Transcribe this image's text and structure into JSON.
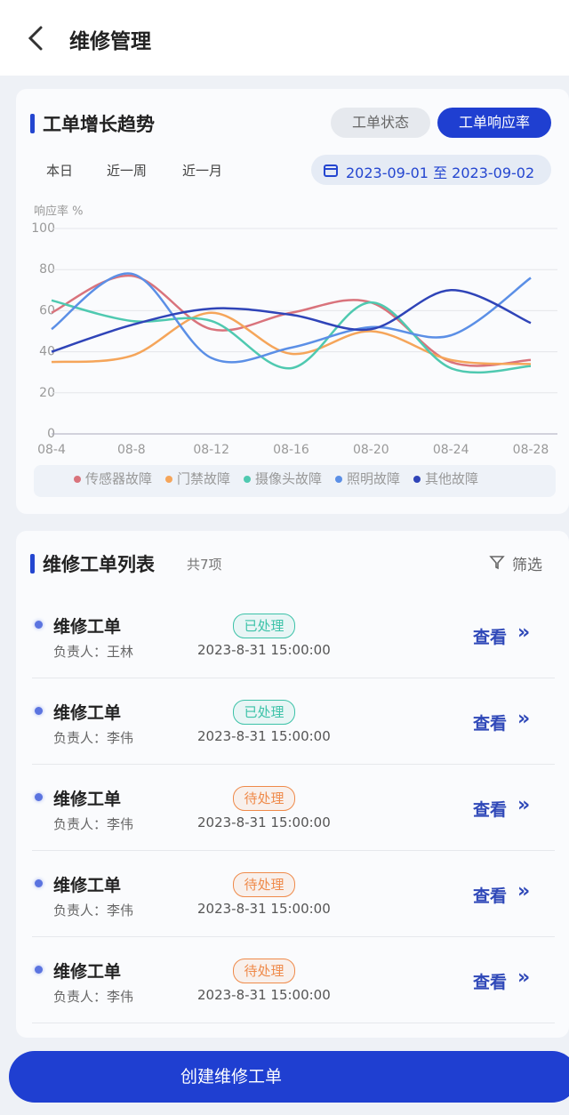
{
  "header": {
    "title": "维修管理"
  },
  "trend": {
    "title": "工单增长趋势",
    "tabs": [
      {
        "label": "工单状态",
        "active": false
      },
      {
        "label": "工单响应率",
        "active": true
      }
    ],
    "ranges": [
      "本日",
      "近一周",
      "近一月"
    ],
    "date_range": "2023-09-01 至 2023-09-02",
    "chart": {
      "type": "line",
      "y_label": "响应率 %",
      "categories": [
        "08-4",
        "08-8",
        "08-12",
        "08-16",
        "08-20",
        "08-24",
        "08-28"
      ],
      "ylim": [
        0,
        100
      ],
      "yticks": [
        0,
        20,
        40,
        60,
        80,
        100
      ],
      "grid": true,
      "series": [
        {
          "name": "传感器故障",
          "color": "#d9737c",
          "values": [
            59,
            77,
            51,
            59,
            64,
            35,
            36
          ]
        },
        {
          "name": "门禁故障",
          "color": "#f5a55a",
          "values": [
            35,
            38,
            59,
            39,
            50,
            36,
            34
          ]
        },
        {
          "name": "摄像头故障",
          "color": "#4fc9b0",
          "values": [
            65,
            55,
            55,
            32,
            64,
            32,
            33
          ]
        },
        {
          "name": "照明故障",
          "color": "#5b8fe6",
          "values": [
            51,
            78,
            37,
            42,
            52,
            48,
            76
          ]
        },
        {
          "name": "其他故障",
          "color": "#2f44b8",
          "values": [
            40,
            53,
            61,
            58,
            51,
            70,
            54
          ]
        }
      ]
    }
  },
  "list": {
    "title": "维修工单列表",
    "count": "共7项",
    "filter": "筛选",
    "items": [
      {
        "title": "维修工单",
        "owner": "负责人：王林",
        "status": "已处理",
        "status_color": "#3cc2a8",
        "time": "2023-8-31 15:00:00",
        "action": "查看"
      },
      {
        "title": "维修工单",
        "owner": "负责人：李伟",
        "status": "已处理",
        "status_color": "#3cc2a8",
        "time": "2023-8-31 15:00:00",
        "action": "查看"
      },
      {
        "title": "维修工单",
        "owner": "负责人：李伟",
        "status": "待处理",
        "status_color": "#ef8a4a",
        "time": "2023-8-31 15:00:00",
        "action": "查看"
      },
      {
        "title": "维修工单",
        "owner": "负责人：李伟",
        "status": "待处理",
        "status_color": "#ef8a4a",
        "time": "2023-8-31 15:00:00",
        "action": "查看"
      },
      {
        "title": "维修工单",
        "owner": "负责人：李伟",
        "status": "待处理",
        "status_color": "#ef8a4a",
        "time": "2023-8-31 15:00:00",
        "action": "查看"
      }
    ]
  },
  "action": "创建维修工单"
}
